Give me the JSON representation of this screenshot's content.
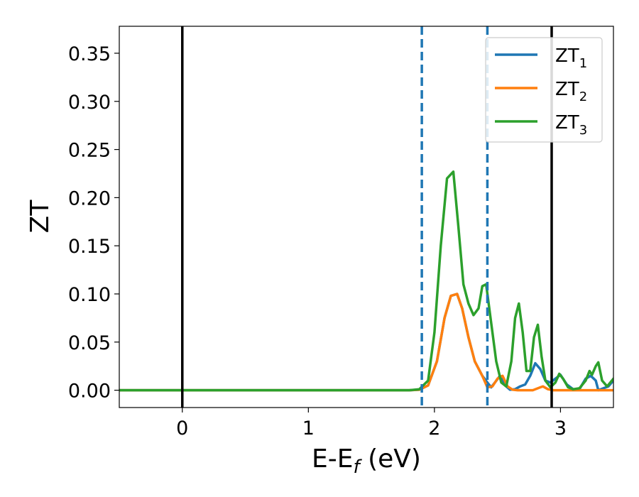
{
  "chart_data": {
    "type": "line",
    "title": "",
    "xlabel_main": "E-E",
    "xlabel_sub": "f",
    "xlabel_unit": " (eV)",
    "ylabel": "ZT",
    "xlim": [
      -0.5,
      3.42
    ],
    "ylim": [
      -0.018,
      0.378
    ],
    "xticks": [
      0,
      1,
      2,
      3
    ],
    "xtick_labels": [
      "0",
      "1",
      "2",
      "3"
    ],
    "yticks": [
      0.0,
      0.05,
      0.1,
      0.15,
      0.2,
      0.25,
      0.3,
      0.35
    ],
    "ytick_labels": [
      "0.00",
      "0.05",
      "0.10",
      "0.15",
      "0.20",
      "0.25",
      "0.30",
      "0.35"
    ],
    "vlines_solid": [
      0.0,
      2.93
    ],
    "vlines_dashed": [
      1.9,
      2.42
    ],
    "legend_position": "top-right",
    "grid": false,
    "series": [
      {
        "name_main": "ZT",
        "name_sub": "1",
        "color": "#1f77b4",
        "x": [
          -0.5,
          1.8,
          1.88,
          1.95,
          2.02,
          2.08,
          2.13,
          2.18,
          2.22,
          2.27,
          2.32,
          2.38,
          2.42,
          2.45,
          2.48,
          2.52,
          2.56,
          2.6,
          2.64,
          2.68,
          2.72,
          2.76,
          2.8,
          2.84,
          2.88,
          2.92,
          2.96,
          3.0,
          3.05,
          3.1,
          3.15,
          3.2,
          3.24,
          3.28,
          3.3,
          3.34,
          3.38,
          3.42
        ],
        "y": [
          0.0,
          0.0,
          0.0005,
          0.005,
          0.03,
          0.075,
          0.098,
          0.1,
          0.085,
          0.055,
          0.03,
          0.015,
          0.008,
          0.003,
          0.008,
          0.015,
          0.005,
          0.0005,
          0.001,
          0.004,
          0.006,
          0.015,
          0.028,
          0.022,
          0.01,
          0.008,
          0.012,
          0.016,
          0.006,
          0.001,
          0.001,
          0.012,
          0.015,
          0.01,
          0.0,
          0.002,
          0.004,
          0.01
        ]
      },
      {
        "name_main": "ZT",
        "name_sub": "2",
        "color": "#ff7f0e",
        "x": [
          -0.5,
          1.8,
          1.88,
          1.95,
          2.02,
          2.08,
          2.13,
          2.18,
          2.22,
          2.27,
          2.32,
          2.38,
          2.42,
          2.46,
          2.5,
          2.54,
          2.58,
          2.62,
          2.66,
          2.7,
          2.74,
          2.78,
          2.82,
          2.86,
          2.9,
          2.94,
          2.98,
          3.02,
          3.06,
          3.1,
          3.15,
          3.2,
          3.25,
          3.3,
          3.35,
          3.42
        ],
        "y": [
          0.0,
          0.0,
          0.0005,
          0.005,
          0.03,
          0.075,
          0.098,
          0.1,
          0.085,
          0.055,
          0.03,
          0.015,
          0.003,
          0.004,
          0.012,
          0.015,
          0.004,
          0.0005,
          0.0,
          0.0,
          0.0,
          0.0,
          0.002,
          0.004,
          0.001,
          0.0,
          0.0,
          0.0,
          0.0,
          0.0,
          0.0,
          0.0,
          0.0,
          0.0,
          0.0,
          0.0
        ]
      },
      {
        "name_main": "ZT",
        "name_sub": "3",
        "color": "#2ca02c",
        "x": [
          -0.5,
          1.8,
          1.88,
          1.95,
          2.0,
          2.05,
          2.1,
          2.15,
          2.19,
          2.23,
          2.27,
          2.31,
          2.35,
          2.38,
          2.41,
          2.45,
          2.49,
          2.53,
          2.57,
          2.61,
          2.64,
          2.67,
          2.7,
          2.73,
          2.76,
          2.79,
          2.82,
          2.85,
          2.88,
          2.92,
          2.96,
          2.99,
          3.02,
          3.06,
          3.1,
          3.15,
          3.2,
          3.23,
          3.25,
          3.28,
          3.3,
          3.33,
          3.37,
          3.42
        ],
        "y": [
          0.0,
          0.0,
          0.001,
          0.01,
          0.06,
          0.15,
          0.22,
          0.227,
          0.17,
          0.11,
          0.09,
          0.078,
          0.085,
          0.108,
          0.11,
          0.07,
          0.03,
          0.008,
          0.004,
          0.03,
          0.075,
          0.09,
          0.06,
          0.02,
          0.02,
          0.055,
          0.068,
          0.035,
          0.01,
          0.003,
          0.008,
          0.017,
          0.012,
          0.003,
          0.001,
          0.002,
          0.01,
          0.02,
          0.016,
          0.025,
          0.029,
          0.01,
          0.004,
          0.012
        ]
      }
    ]
  }
}
